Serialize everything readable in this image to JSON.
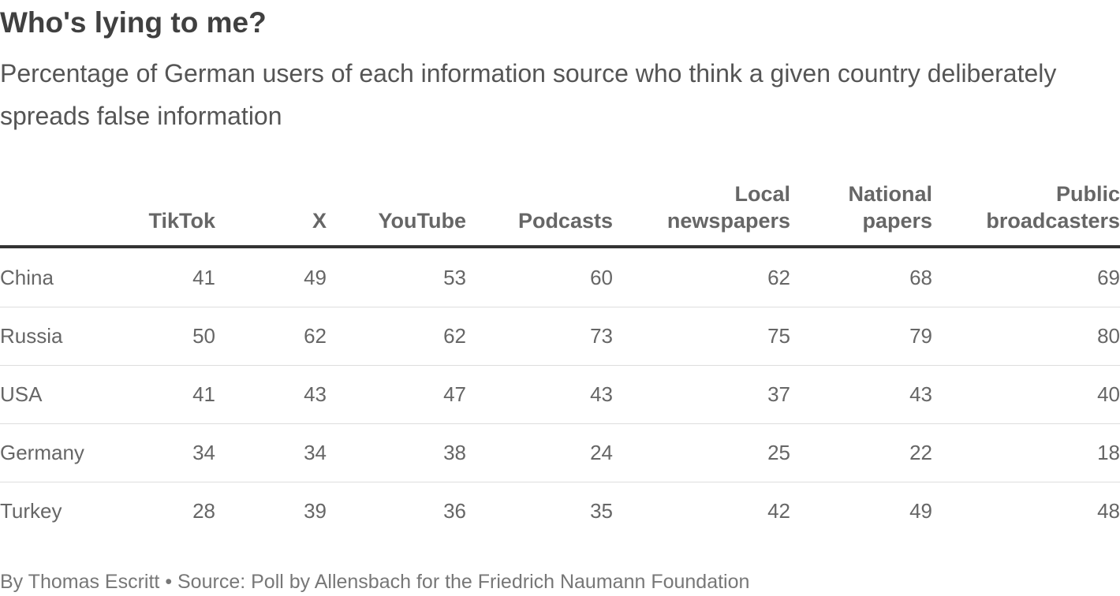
{
  "chart_data": {
    "type": "table",
    "title": "Who's lying to me?",
    "subtitle": "Percentage of German users of each information source who think a given country deliberately spreads false information",
    "columns": [
      [
        "TikTok"
      ],
      [
        "X"
      ],
      [
        "YouTube"
      ],
      [
        "Podcasts"
      ],
      [
        "Local",
        "newspapers"
      ],
      [
        "National",
        "papers"
      ],
      [
        "Public",
        "broadcasters"
      ]
    ],
    "rows": [
      {
        "label": "China",
        "values": [
          41,
          49,
          53,
          60,
          62,
          68,
          69
        ]
      },
      {
        "label": "Russia",
        "values": [
          50,
          62,
          62,
          73,
          75,
          79,
          80
        ]
      },
      {
        "label": "USA",
        "values": [
          41,
          43,
          47,
          43,
          37,
          43,
          40
        ]
      },
      {
        "label": "Germany",
        "values": [
          34,
          34,
          38,
          24,
          25,
          22,
          18
        ]
      },
      {
        "label": "Turkey",
        "values": [
          28,
          39,
          36,
          35,
          42,
          49,
          48
        ]
      }
    ],
    "footer": "By Thomas Escritt • Source: Poll by Allensbach for the Friedrich Naumann Foundation"
  }
}
